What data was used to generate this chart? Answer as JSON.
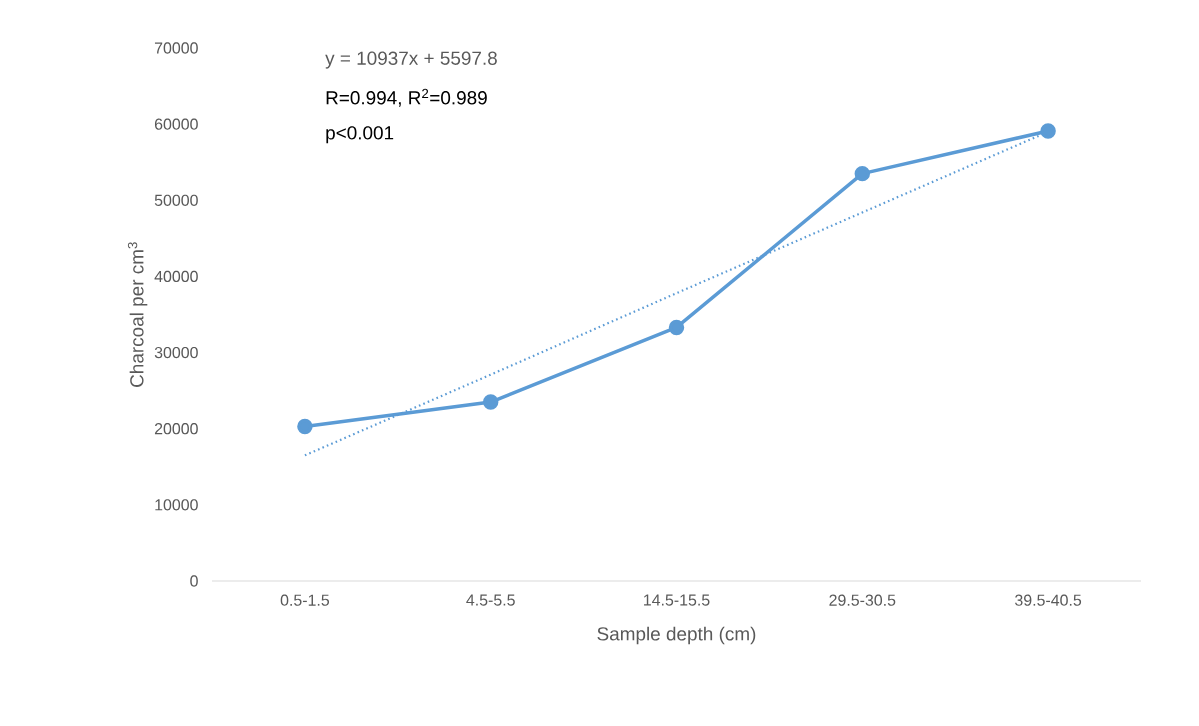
{
  "chart_data": {
    "type": "line",
    "xlabel": "Sample depth (cm)",
    "ylabel": "Charcoal per cm$^{3}$",
    "categories": [
      "0.5-1.5",
      "4.5-5.5",
      "14.5-15.5",
      "29.5-30.5",
      "39.5-40.5"
    ],
    "series": [
      {
        "values": [
          20300,
          23500,
          33300,
          53500,
          59100
        ],
        "color": "#5b9bd5",
        "marker": "circle",
        "line_style": "solid"
      },
      {
        "values": [
          16500,
          27100,
          37800,
          48400,
          59000
        ],
        "color": "#5b9bd5",
        "marker": "none",
        "line_style": "dotted"
      }
    ],
    "ylim": [
      0,
      70000
    ],
    "yticks": [
      0,
      10000,
      20000,
      30000,
      40000,
      50000,
      60000,
      70000
    ],
    "annotations": [
      "y = 10937x + 5597.8",
      "R=0.994, R$^{2}$=0.989",
      "p<0.001"
    ],
    "grid": false
  }
}
